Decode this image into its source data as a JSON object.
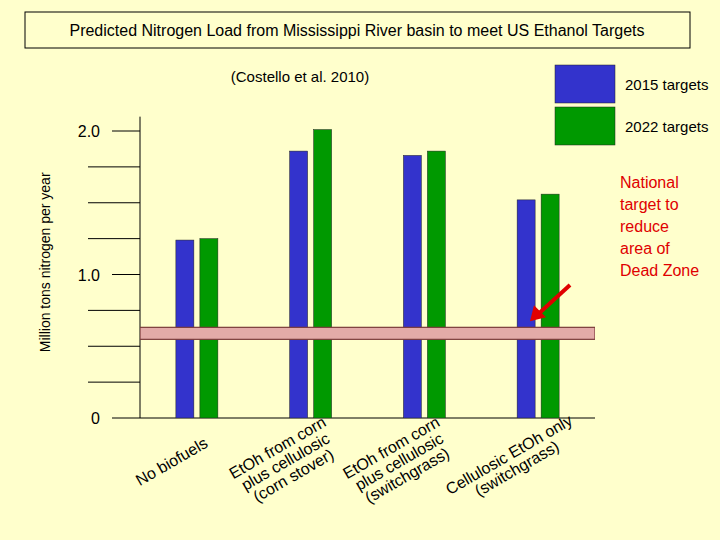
{
  "chart_data": {
    "type": "bar",
    "title": "Predicted Nitrogen Load from Mississippi River basin to meet US Ethanol Targets",
    "subtitle": "(Costello et al. 2010)",
    "y_label": "Million tons nitrogen per year",
    "categories": [
      "No biofuels",
      "EtOh from corn\nplus cellulosic\n(corn stover)",
      "EtOh from corn\nplus cellulosic\n(switchgrass)",
      "Cellulosic EtOh only\n(switchgrass)"
    ],
    "series": [
      {
        "name": "2015 targets",
        "color": "#3333CC",
        "values": [
          1.24,
          1.86,
          1.83,
          1.52
        ]
      },
      {
        "name": "2022 targets",
        "color": "#009900",
        "values": [
          1.25,
          2.01,
          1.86,
          1.56
        ]
      }
    ],
    "ylim": [
      0,
      2.1
    ],
    "yticks": [
      0,
      {
        "value": 1,
        "label": "1.0"
      },
      {
        "value": 2,
        "label": "2.0"
      }
    ],
    "grid": false,
    "legend": "top-right",
    "annotations": [
      {
        "text": "National\ntarget to\nreduce\narea of\nDead Zone",
        "value": 0.59
      }
    ]
  }
}
